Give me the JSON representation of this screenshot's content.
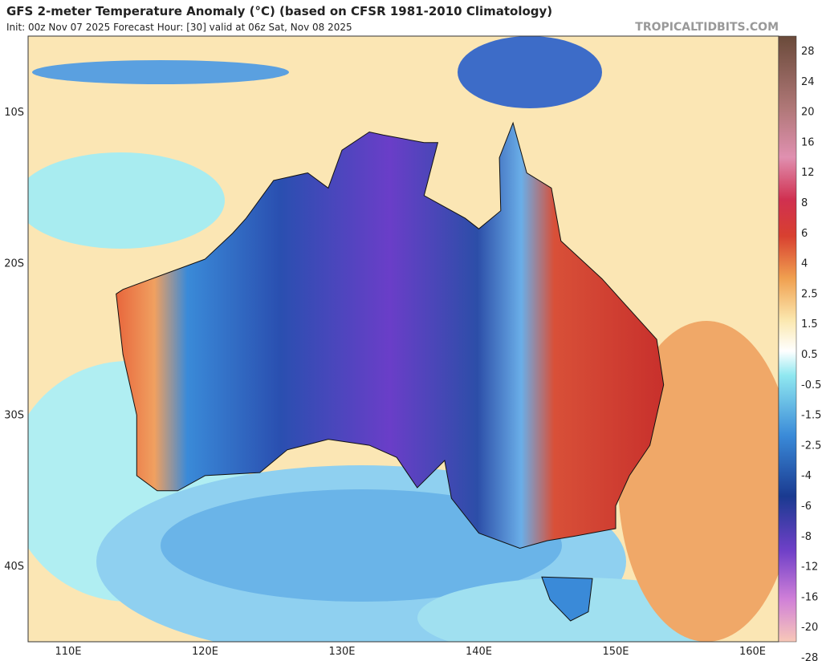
{
  "header": {
    "title": "GFS 2-meter Temperature Anomaly (°C) (based on CFSR 1981-2010 Climatology)",
    "subtitle": "Init: 00z Nov 07 2025   Forecast Hour: [30]   valid at 06z Sat, Nov 08 2025",
    "watermark": "TROPICALTIDBITS.COM"
  },
  "map": {
    "lat_labels": [
      "10S",
      "20S",
      "30S",
      "40S"
    ],
    "lon_labels": [
      "110E",
      "120E",
      "130E",
      "140E",
      "150E",
      "160E"
    ]
  },
  "colorbar": {
    "labels": [
      "28",
      "24",
      "20",
      "16",
      "12",
      "8",
      "6",
      "4",
      "2.5",
      "1.5",
      "0.5",
      "-0.5",
      "-1.5",
      "-2.5",
      "-4",
      "-6",
      "-8",
      "-12",
      "-16",
      "-20",
      "-28"
    ]
  }
}
